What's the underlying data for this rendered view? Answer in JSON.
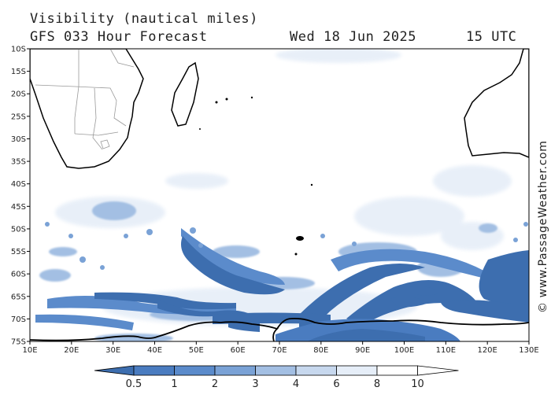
{
  "header": {
    "title": "Visibility (nautical miles)",
    "forecast": "GFS 033 Hour Forecast",
    "date": "Wed 18 Jun 2025",
    "time": "15 UTC"
  },
  "map": {
    "lat_labels": [
      "10S",
      "15S",
      "20S",
      "25S",
      "30S",
      "35S",
      "40S",
      "45S",
      "50S",
      "55S",
      "60S",
      "65S",
      "70S",
      "75S"
    ],
    "lon_labels": [
      "10E",
      "20E",
      "30E",
      "40E",
      "50E",
      "60E",
      "70E",
      "80E",
      "90E",
      "100E",
      "110E",
      "120E",
      "130E"
    ],
    "region": "Southern Indian Ocean",
    "land_color": "#ffffff",
    "coast_color": "#000000",
    "border_color": "#999999"
  },
  "legend": {
    "labels": [
      "0.5",
      "1",
      "2",
      "3",
      "4",
      "6",
      "8",
      "10"
    ],
    "colors": [
      "#3d6eaf",
      "#4a7cc0",
      "#5b8bcb",
      "#7aa2d6",
      "#a3bfe3",
      "#c7d8ee",
      "#e6eef8",
      "#ffffff"
    ]
  },
  "credit": "© www.PassageWeather.com"
}
